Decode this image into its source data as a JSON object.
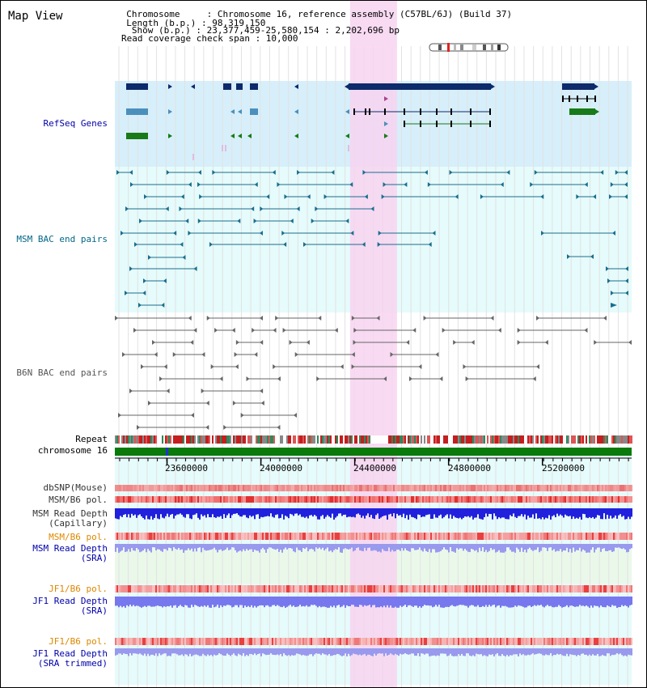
{
  "header": {
    "title": "Map View",
    "info_lines": [
      "  Chromosome     : Chromosome 16, reference assembly (C57BL/6J) (Build 37)",
      "  Length (b.p.) : 98,319,150",
      "   Show (b.p.) : 23,377,459-25,580,154 : 2,202,696 bp",
      "Read coverage check span : 10,000"
    ]
  },
  "view": {
    "start": 23377459,
    "end": 25580154,
    "highlight": [
      24380000,
      24580000
    ]
  },
  "tracks": {
    "refseq": "RefSeq Genes",
    "msm_bac": "MSM BAC end pairs",
    "b6n_bac": "B6N BAC end pairs",
    "repeat": "Repeat",
    "chromosome": "chromosome 16",
    "dbsnp": "dbSNP(Mouse)",
    "msm_b6_pol_1": "MSM/B6 pol.",
    "msm_depth_cap_1": "MSM Read Depth",
    "msm_depth_cap_2": "(Capillary)",
    "msm_b6_pol_2": "MSM/B6 pol.",
    "msm_depth_sra_1": "MSM Read Depth",
    "msm_depth_sra_2": "(SRA)",
    "jf1_pol_1": "JF1/B6 pol.",
    "jf1_depth_1": "JF1 Read Depth",
    "jf1_depth_1b": "(SRA)",
    "jf1_pol_2": "JF1/B6 pol.",
    "jf1_depth_2": "JF1 Read Depth",
    "jf1_depth_2b": "(SRA trimmed)"
  },
  "axis": {
    "ticks": [
      23600000,
      24000000,
      24400000,
      24800000,
      25200000
    ]
  },
  "colors": {
    "title": "#000000",
    "blue_label": "#0000aa",
    "orange_label": "#dd8800",
    "teal_label": "#006688",
    "grey_label": "#555555",
    "refseq_bg": "#d6effa",
    "pink_highlight": "#f7d4f0",
    "msm_bg": "#e6fbfb",
    "gene_dark": "#0d2a6b",
    "gene_mid": "#4b8fbd",
    "gene_green": "#187a18",
    "bac_teal": "#1a6e8e",
    "bac_grey": "#666666",
    "chrom_green": "#0a7a0a"
  }
}
